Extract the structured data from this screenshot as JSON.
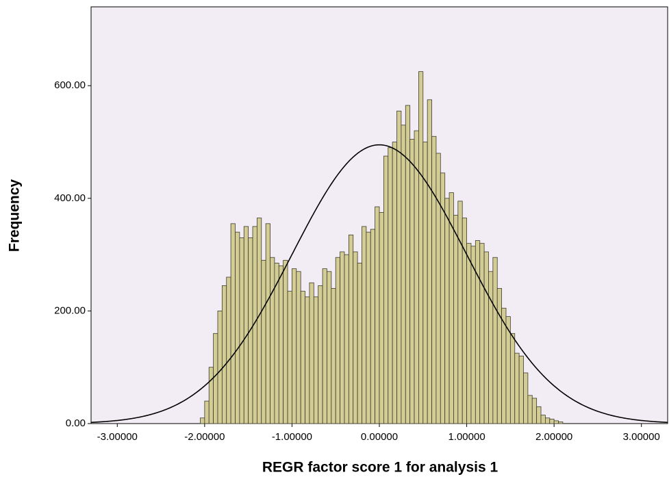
{
  "chart_data": {
    "type": "histogram",
    "x_label": "REGR factor score   1 for analysis 1",
    "y_label": "Frequency",
    "bins": [
      -2.05,
      -2.0,
      -1.95,
      -1.9,
      -1.85,
      -1.8,
      -1.75,
      -1.7,
      -1.65,
      -1.6,
      -1.55,
      -1.5,
      -1.45,
      -1.4,
      -1.35,
      -1.3,
      -1.25,
      -1.2,
      -1.15,
      -1.1,
      -1.05,
      -1.0,
      -0.95,
      -0.9,
      -0.85,
      -0.8,
      -0.75,
      -0.7,
      -0.65,
      -0.6,
      -0.55,
      -0.5,
      -0.45,
      -0.4,
      -0.35,
      -0.3,
      -0.25,
      -0.2,
      -0.15,
      -0.1,
      -0.05,
      0.0,
      0.05,
      0.1,
      0.15,
      0.2,
      0.25,
      0.3,
      0.35,
      0.4,
      0.45,
      0.5,
      0.55,
      0.6,
      0.65,
      0.7,
      0.75,
      0.8,
      0.85,
      0.9,
      0.95,
      1.0,
      1.05,
      1.1,
      1.15,
      1.2,
      1.25,
      1.3,
      1.35,
      1.4,
      1.45,
      1.5,
      1.55,
      1.6,
      1.65,
      1.7,
      1.75,
      1.8,
      1.85,
      1.9,
      1.95,
      2.0,
      2.05,
      2.1
    ],
    "values": [
      10,
      40,
      100,
      160,
      200,
      245,
      260,
      355,
      340,
      330,
      350,
      330,
      350,
      365,
      290,
      355,
      295,
      285,
      280,
      290,
      235,
      275,
      270,
      235,
      225,
      250,
      225,
      245,
      275,
      270,
      240,
      295,
      305,
      300,
      335,
      305,
      285,
      350,
      340,
      345,
      385,
      375,
      475,
      490,
      500,
      555,
      530,
      565,
      505,
      520,
      625,
      500,
      575,
      510,
      480,
      445,
      400,
      410,
      370,
      395,
      365,
      320,
      315,
      325,
      320,
      305,
      270,
      295,
      240,
      205,
      190,
      160,
      125,
      120,
      90,
      50,
      45,
      30,
      15,
      10,
      8,
      5,
      3
    ],
    "color": "#d3cd95",
    "curve": {
      "mean": 0,
      "sd": 1,
      "peak": 495
    },
    "xlim": [
      -3.3,
      3.3
    ],
    "ylim": [
      0,
      740
    ],
    "xticks": [
      {
        "value": -3,
        "label": "-3.00000"
      },
      {
        "value": -2,
        "label": "-2.00000"
      },
      {
        "value": -1,
        "label": "-1.00000"
      },
      {
        "value": 0,
        "label": "0.00000"
      },
      {
        "value": 1,
        "label": "1.00000"
      },
      {
        "value": 2,
        "label": "2.00000"
      },
      {
        "value": 3,
        "label": "3.00000"
      }
    ],
    "yticks": [
      {
        "value": 0,
        "label": "0.00"
      },
      {
        "value": 200,
        "label": "200.00"
      },
      {
        "value": 400,
        "label": "400.00"
      },
      {
        "value": 600,
        "label": "600.00"
      }
    ]
  }
}
